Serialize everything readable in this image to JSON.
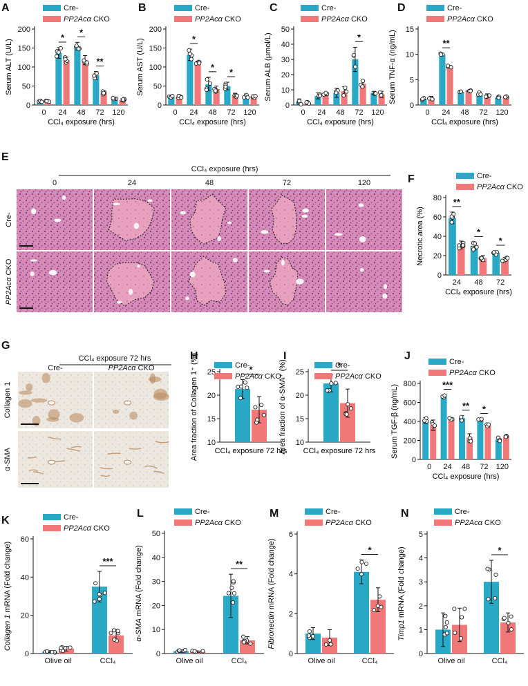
{
  "figure": {
    "colors": {
      "cre": "#2aa9c7",
      "cko": "#f07878",
      "dot_stroke": "#222222",
      "tissue_he": "#d890b8",
      "tissue_ihc": "#ece6dc",
      "stain_brown": "#b8865a",
      "necrosis_line": "#222222"
    }
  },
  "legend": {
    "cre": "Cre-",
    "cko_gene": "PP2Acα",
    "cko_suffix": " CKO"
  },
  "chart_data": [
    {
      "id": "A",
      "type": "bar",
      "ylabel": "Serum ALT (U/L)",
      "xlabel": "CCl₄ exposure (hrs)",
      "categories": [
        "0",
        "24",
        "48",
        "72",
        "120"
      ],
      "ylim": [
        0,
        200
      ],
      "yticks": [
        0,
        50,
        100,
        150,
        200
      ],
      "series": [
        {
          "name": "Cre-",
          "values": [
            11,
            137,
            155,
            78,
            17
          ],
          "err": [
            3,
            14,
            10,
            10,
            3
          ]
        },
        {
          "name": "PP2Acα CKO",
          "values": [
            10,
            118,
            118,
            32,
            13
          ],
          "err": [
            3,
            8,
            12,
            4,
            3
          ]
        }
      ],
      "sig": [
        {
          "cat": 1,
          "text": "*"
        },
        {
          "cat": 2,
          "text": "*"
        },
        {
          "cat": 3,
          "text": "**"
        }
      ]
    },
    {
      "id": "B",
      "type": "bar",
      "ylabel": "Serum AST (U/L)",
      "xlabel": "CCl₄ exposure (hrs)",
      "categories": [
        "0",
        "24",
        "48",
        "72",
        "120"
      ],
      "ylim": [
        0,
        200
      ],
      "yticks": [
        0,
        50,
        100,
        150,
        200
      ],
      "series": [
        {
          "name": "Cre-",
          "values": [
            22,
            132,
            55,
            50,
            24
          ],
          "err": [
            4,
            15,
            18,
            10,
            5
          ]
        },
        {
          "name": "PP2Acα CKO",
          "values": [
            23,
            112,
            42,
            26,
            23
          ],
          "err": [
            4,
            3,
            8,
            5,
            4
          ]
        }
      ],
      "sig": [
        {
          "cat": 1,
          "text": "*"
        },
        {
          "cat": 2,
          "text": "*"
        },
        {
          "cat": 3,
          "text": "*"
        }
      ]
    },
    {
      "id": "C",
      "type": "bar",
      "ylabel": "Serum ALB (μmol/L)",
      "xlabel": "CCl₄ exposure (hrs)",
      "categories": [
        "0",
        "24",
        "48",
        "72",
        "120"
      ],
      "ylim": [
        0,
        50
      ],
      "yticks": [
        0,
        10,
        20,
        30,
        40,
        50
      ],
      "series": [
        {
          "name": "Cre-",
          "values": [
            2,
            6,
            8,
            30,
            8
          ],
          "err": [
            2,
            2,
            3,
            8,
            1
          ]
        },
        {
          "name": "PP2Acα CKO",
          "values": [
            1,
            7,
            9,
            14,
            7
          ],
          "err": [
            1,
            1,
            3,
            2,
            2
          ]
        }
      ],
      "sig": [
        {
          "cat": 3,
          "text": "*"
        }
      ]
    },
    {
      "id": "D",
      "type": "bar",
      "ylabel": "Serum TNF-α (ng/mL)",
      "xlabel": "CCl₄ exposure (hrs)",
      "categories": [
        "0",
        "24",
        "48",
        "72",
        "120"
      ],
      "ylim": [
        0,
        15
      ],
      "yticks": [
        0,
        5,
        10,
        15
      ],
      "series": [
        {
          "name": "Cre-",
          "values": [
            1.2,
            10.0,
            2.6,
            2.3,
            1.5
          ],
          "err": [
            0.2,
            0.2,
            0.1,
            0.3,
            0.2
          ]
        },
        {
          "name": "PP2Acα CKO",
          "values": [
            1.4,
            7.6,
            2.8,
            1.8,
            1.6
          ],
          "err": [
            0.3,
            0.2,
            0.1,
            0.4,
            0.1
          ]
        }
      ],
      "sig": [
        {
          "cat": 1,
          "text": "**"
        }
      ]
    },
    {
      "id": "F",
      "type": "bar",
      "ylabel": "Necrotic area (%)",
      "xlabel": "CCl₄ exposure (hrs)",
      "categories": [
        "24",
        "48",
        "72"
      ],
      "ylim": [
        0,
        80
      ],
      "yticks": [
        0,
        20,
        40,
        60,
        80
      ],
      "series": [
        {
          "name": "Cre-",
          "values": [
            59,
            30,
            23
          ],
          "err": [
            6,
            4,
            2
          ]
        },
        {
          "name": "PP2Acα CKO",
          "values": [
            31,
            17,
            16
          ],
          "err": [
            4,
            3,
            2
          ]
        }
      ],
      "sig": [
        {
          "cat": 0,
          "text": "**"
        },
        {
          "cat": 1,
          "text": "*"
        },
        {
          "cat": 2,
          "text": "*"
        }
      ]
    },
    {
      "id": "H",
      "type": "bar",
      "ylabel": "Area fraction of Collagen 1⁺ (%)",
      "xlabel": "CCl₄ exposure 72 hrs",
      "categories": [
        ""
      ],
      "ylim": [
        10,
        25
      ],
      "yticks": [
        10,
        15,
        20,
        25
      ],
      "series": [
        {
          "name": "Cre-",
          "values": [
            21.3
          ],
          "err": [
            2.0
          ]
        },
        {
          "name": "PP2Acα CKO",
          "values": [
            16.9
          ],
          "err": [
            2.8
          ]
        }
      ],
      "sig": [
        {
          "cat": 0,
          "text": "*"
        }
      ]
    },
    {
      "id": "I",
      "type": "bar",
      "ylabel": "Area fraction of α-SMA⁺ (%)",
      "xlabel": "CCl₄ exposure 72 hrs",
      "categories": [
        ""
      ],
      "ylim": [
        10,
        25
      ],
      "yticks": [
        10,
        15,
        20,
        25
      ],
      "series": [
        {
          "name": "Cre-",
          "values": [
            22.5
          ],
          "err": [
            1.8
          ]
        },
        {
          "name": "PP2Acα CKO",
          "values": [
            18.3
          ],
          "err": [
            3.0
          ]
        }
      ],
      "sig": [
        {
          "cat": 0,
          "text": "*"
        }
      ]
    },
    {
      "id": "J",
      "type": "bar",
      "ylabel": "Serum TGF-β (ng/mL)",
      "xlabel": "CCl₄ exposure (hrs)",
      "categories": [
        "0",
        "24",
        "48",
        "72",
        "120"
      ],
      "ylim": [
        0,
        800
      ],
      "yticks": [
        0,
        200,
        400,
        600,
        800
      ],
      "series": [
        {
          "name": "Cre-",
          "values": [
            410,
            665,
            435,
            415,
            210
          ],
          "err": [
            30,
            15,
            25,
            10,
            25
          ]
        },
        {
          "name": "PP2Acα CKO",
          "values": [
            360,
            430,
            230,
            355,
            245
          ],
          "err": [
            55,
            10,
            40,
            15,
            10
          ]
        }
      ],
      "sig": [
        {
          "cat": 1,
          "text": "***"
        },
        {
          "cat": 2,
          "text": "**"
        },
        {
          "cat": 3,
          "text": "*"
        }
      ]
    },
    {
      "id": "K",
      "type": "bar",
      "ylabel": "Collagen 1 mRNA (Fold change)",
      "xlabel": "",
      "categories": [
        "Olive oil",
        "CCl₄"
      ],
      "ylim": [
        0,
        60
      ],
      "yticks": [
        0,
        20,
        40,
        60
      ],
      "series": [
        {
          "name": "Cre-",
          "values": [
            1.0,
            35
          ],
          "err": [
            0.5,
            8
          ]
        },
        {
          "name": "PP2Acα CKO",
          "values": [
            2.5,
            9.5
          ],
          "err": [
            1.2,
            3
          ]
        }
      ],
      "sig": [
        {
          "cat": 1,
          "text": "***"
        }
      ]
    },
    {
      "id": "L",
      "type": "bar",
      "ylabel": "α-SMA mRNA (Fold change)",
      "xlabel": "",
      "categories": [
        "Olive oil",
        "CCl₄"
      ],
      "ylim": [
        0,
        50
      ],
      "yticks": [
        0,
        10,
        20,
        30,
        40,
        50
      ],
      "series": [
        {
          "name": "Cre-",
          "values": [
            1.0,
            24
          ],
          "err": [
            0.5,
            9
          ]
        },
        {
          "name": "PP2Acα CKO",
          "values": [
            0.8,
            5.5
          ],
          "err": [
            0.3,
            1.5
          ]
        }
      ],
      "sig": [
        {
          "cat": 1,
          "text": "**"
        }
      ]
    },
    {
      "id": "M",
      "type": "bar",
      "ylabel": "Fibronectin mRNA (Fold change)",
      "xlabel": "",
      "categories": [
        "Olive oil",
        "CCl₄"
      ],
      "ylim": [
        0,
        6
      ],
      "yticks": [
        0,
        2,
        4,
        6
      ],
      "series": [
        {
          "name": "Cre-",
          "values": [
            1.0,
            4.1
          ],
          "err": [
            0.3,
            0.6
          ]
        },
        {
          "name": "PP2Acα CKO",
          "values": [
            0.8,
            2.7
          ],
          "err": [
            0.4,
            0.6
          ]
        }
      ],
      "sig": [
        {
          "cat": 1,
          "text": "*"
        }
      ]
    },
    {
      "id": "N",
      "type": "bar",
      "ylabel": "Timp1 mRNA (Fold change)",
      "xlabel": "",
      "categories": [
        "Olive oil",
        "CCl₄"
      ],
      "ylim": [
        0,
        5
      ],
      "yticks": [
        0,
        1,
        2,
        3,
        4,
        5
      ],
      "series": [
        {
          "name": "Cre-",
          "values": [
            1.0,
            3.0
          ],
          "err": [
            0.7,
            0.9
          ]
        },
        {
          "name": "PP2Acα CKO",
          "values": [
            1.2,
            1.3
          ],
          "err": [
            0.7,
            0.4
          ]
        }
      ],
      "sig": [
        {
          "cat": 1,
          "text": "*"
        }
      ]
    }
  ],
  "panel_E": {
    "label": "E",
    "title": "CCl₄ exposure (hrs)",
    "columns": [
      "0",
      "24",
      "48",
      "72",
      "120"
    ],
    "rows": [
      {
        "gene": "",
        "suffix": "Cre-"
      },
      {
        "gene": "PP2Acα",
        "suffix": " CKO"
      }
    ]
  },
  "panel_G": {
    "label": "G",
    "title": "CCl₄ exposure 72 hrs",
    "columns": [
      {
        "gene": "",
        "suffix": "Cre-"
      },
      {
        "gene": "PP2Acα",
        "suffix": " CKO"
      }
    ],
    "rows": [
      "Collagen 1",
      "α-SMA"
    ]
  }
}
